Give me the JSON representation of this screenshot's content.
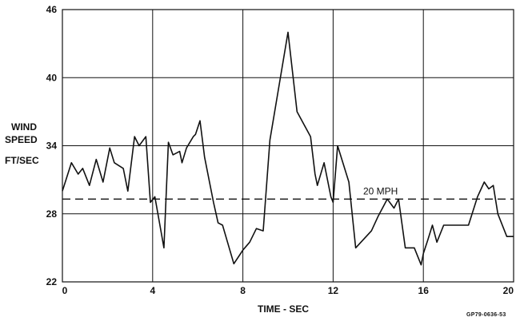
{
  "chart_data": {
    "type": "line",
    "xlabel": "TIME - SEC",
    "ylabel": [
      "WIND",
      "SPEED",
      "FT/SEC"
    ],
    "xlim": [
      0,
      20
    ],
    "ylim": [
      22,
      46
    ],
    "xticks": [
      "0",
      "4",
      "8",
      "12",
      "16",
      "20"
    ],
    "yticks": [
      "22",
      "28",
      "34",
      "40",
      "46"
    ],
    "grid": true,
    "reference_line": {
      "label": "20 MPH",
      "y": 29.3,
      "style": "dashed"
    },
    "series": [
      {
        "x": [
          0,
          0.4,
          0.7,
          0.9,
          1.2,
          1.5,
          1.8,
          2.1,
          2.3,
          2.7,
          2.9,
          3.2,
          3.4,
          3.7,
          3.9,
          4.1,
          4.5,
          4.7,
          4.9,
          5.2,
          5.3,
          5.5,
          5.8,
          5.9,
          6.1,
          6.3,
          6.7,
          6.9,
          7.1,
          7.6,
          7.9,
          8.0,
          8.3,
          8.6,
          8.9,
          9.2,
          10.0,
          10.4,
          11.0,
          11.2,
          11.3,
          11.6,
          11.9,
          12.0,
          12.2,
          12.7,
          13.0,
          13.7,
          14.0,
          14.4,
          14.7,
          14.9,
          15.2,
          15.6,
          15.9,
          16.0,
          16.2,
          16.4,
          16.6,
          16.9,
          17.0,
          17.6,
          17.8,
          18.0,
          18.4,
          18.7,
          18.9,
          19.1,
          19.3,
          19.7,
          20.0
        ],
        "y": [
          30.0,
          32.5,
          31.5,
          32.0,
          30.5,
          32.8,
          30.8,
          33.8,
          32.5,
          32.0,
          30.0,
          34.8,
          34.0,
          34.8,
          29.0,
          29.5,
          25.0,
          34.3,
          33.2,
          33.5,
          32.5,
          33.8,
          34.8,
          35.0,
          36.2,
          33.0,
          29.0,
          27.2,
          27.0,
          23.6,
          24.5,
          24.8,
          25.5,
          26.7,
          26.5,
          34.5,
          44.0,
          37.0,
          34.8,
          31.5,
          30.5,
          32.5,
          29.5,
          29.0,
          34.0,
          30.8,
          25.0,
          26.5,
          27.8,
          29.3,
          28.5,
          29.3,
          25.0,
          25.0,
          23.5,
          24.5,
          25.7,
          27.0,
          25.5,
          27.0,
          27.0,
          27.0,
          27.0,
          27.0,
          29.5,
          30.8,
          30.2,
          30.5,
          28.0,
          26.0,
          26.0
        ]
      }
    ]
  },
  "figure_code": "GP79-0636-53"
}
